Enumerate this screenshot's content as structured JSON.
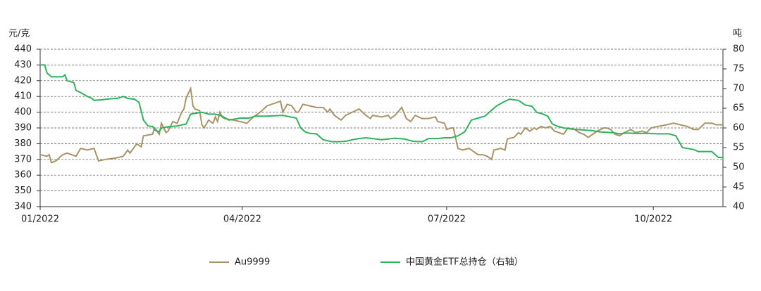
{
  "chart_data": {
    "type": "line",
    "y_label": "元/克",
    "y2_label": "吨",
    "xlim": [
      0,
      304
    ],
    "xticks": [
      {
        "value": 0,
        "label": "01/2022"
      },
      {
        "value": 90,
        "label": "04/2022"
      },
      {
        "value": 181,
        "label": "07/2022"
      },
      {
        "value": 273,
        "label": "10/2022"
      }
    ],
    "ylim": [
      340,
      440
    ],
    "yticks": [
      340,
      350,
      360,
      370,
      380,
      390,
      400,
      410,
      420,
      430,
      440
    ],
    "y2lim": [
      40,
      80
    ],
    "y2ticks": [
      40,
      45,
      50,
      55,
      60,
      65,
      70,
      75,
      80
    ],
    "grid": true,
    "series": [
      {
        "name": "Au9999",
        "color": "#a89466",
        "x": [
          0,
          3,
          4,
          5,
          7,
          10,
          12,
          16,
          18,
          21,
          24,
          26,
          29,
          34,
          37,
          39,
          40,
          43,
          45,
          46,
          50,
          51,
          53,
          54,
          56,
          57,
          59,
          61,
          63,
          64,
          65,
          67,
          68,
          69,
          71,
          72,
          73,
          75,
          77,
          78,
          79,
          80,
          81,
          82,
          86,
          89,
          92,
          95,
          98,
          101,
          105,
          107,
          108,
          110,
          112,
          114,
          115,
          117,
          120,
          123,
          126,
          128,
          129,
          131,
          134,
          136,
          139,
          142,
          145,
          147,
          148,
          152,
          155,
          156,
          158,
          161,
          163,
          165,
          167,
          170,
          173,
          176,
          177,
          180,
          181,
          183,
          184,
          186,
          188,
          191,
          192,
          195,
          197,
          199,
          201,
          202,
          205,
          207,
          208,
          211,
          213,
          214,
          216,
          218,
          220,
          221,
          223,
          225,
          227,
          229,
          231,
          233,
          235,
          238,
          240,
          242,
          244,
          246,
          248,
          251,
          252,
          254,
          256,
          258,
          260,
          263,
          265,
          268,
          270,
          272,
          275,
          279,
          282,
          285,
          288,
          291,
          293,
          296,
          299,
          301,
          304
        ],
        "values": [
          373,
          372,
          373,
          368,
          369,
          373,
          374,
          372,
          377,
          376,
          377,
          369,
          370,
          371,
          372,
          376,
          374,
          380,
          378,
          385,
          386,
          390,
          386,
          393,
          387,
          388,
          394,
          393,
          400,
          402,
          409,
          415,
          404,
          402,
          401,
          392,
          390,
          395,
          393,
          397,
          394,
          400,
          397,
          396,
          395,
          394,
          393,
          397,
          400,
          404,
          406,
          407,
          400,
          405,
          404,
          400,
          400,
          405,
          404,
          403,
          403,
          400,
          402,
          398,
          395,
          398,
          400,
          402,
          398,
          396,
          398,
          397,
          398,
          396,
          398,
          403,
          396,
          394,
          398,
          396,
          396,
          397,
          394,
          393,
          389,
          390,
          390,
          377,
          376,
          377,
          376,
          373,
          373,
          372,
          370,
          376,
          377,
          376,
          383,
          384,
          387,
          386,
          390,
          388,
          390,
          389,
          391,
          390,
          391,
          388,
          387,
          386,
          390,
          389,
          387,
          386,
          384,
          386,
          388,
          390,
          390,
          389,
          386,
          385,
          387,
          389,
          387,
          388,
          387,
          390,
          391,
          392,
          393,
          392,
          391,
          389,
          389,
          393,
          393,
          392,
          392
        ]
      },
      {
        "name": "中国黄金ETF总持仓（右轴）",
        "color": "#2eb35a",
        "axis": "y2",
        "x": [
          0,
          2,
          3,
          5,
          7,
          10,
          11,
          12,
          15,
          16,
          18,
          21,
          23,
          24,
          28,
          31,
          34,
          35,
          37,
          39,
          42,
          44,
          46,
          48,
          50,
          51,
          53,
          54,
          57,
          61,
          65,
          67,
          72,
          75,
          78,
          81,
          84,
          89,
          93,
          96,
          101,
          108,
          114,
          116,
          118,
          120,
          123,
          126,
          130,
          133,
          136,
          139,
          142,
          145,
          148,
          152,
          155,
          158,
          162,
          166,
          170,
          173,
          177,
          180,
          183,
          186,
          189,
          192,
          195,
          198,
          200,
          203,
          206,
          209,
          213,
          216,
          219,
          221,
          224,
          226,
          228,
          230,
          233,
          237,
          241,
          246,
          249,
          255,
          258,
          261,
          265,
          271,
          275,
          280,
          283,
          285,
          286,
          291,
          293,
          299,
          301,
          302,
          304
        ],
        "values": [
          76,
          76,
          74,
          73,
          73,
          73,
          73.5,
          72,
          71.5,
          69.5,
          69,
          68,
          67.5,
          67,
          67.2,
          67.4,
          67.5,
          67.6,
          68,
          67.5,
          67.3,
          66.5,
          62,
          60.5,
          60.4,
          59.5,
          59,
          60,
          60.3,
          60.5,
          61,
          63.5,
          64,
          63.5,
          63.5,
          63,
          62,
          62.5,
          62.5,
          63,
          63,
          63.2,
          62.5,
          60,
          59,
          58.6,
          58.5,
          57,
          56.5,
          56.5,
          56.6,
          57,
          57.3,
          57.5,
          57.3,
          57,
          57.2,
          57.4,
          57.2,
          56.6,
          56.5,
          57.3,
          57.3,
          57.5,
          57.5,
          58,
          59,
          62,
          62.5,
          63,
          64,
          65.5,
          66.5,
          67.3,
          67,
          65.8,
          65.5,
          64,
          63.5,
          63,
          61,
          60.5,
          60,
          59.7,
          59.5,
          59.3,
          59,
          58.8,
          58.5,
          58.7,
          58.6,
          58.6,
          58.5,
          58.5,
          58,
          56,
          55,
          54.5,
          54,
          54,
          53,
          52.5,
          52.5
        ]
      }
    ]
  }
}
